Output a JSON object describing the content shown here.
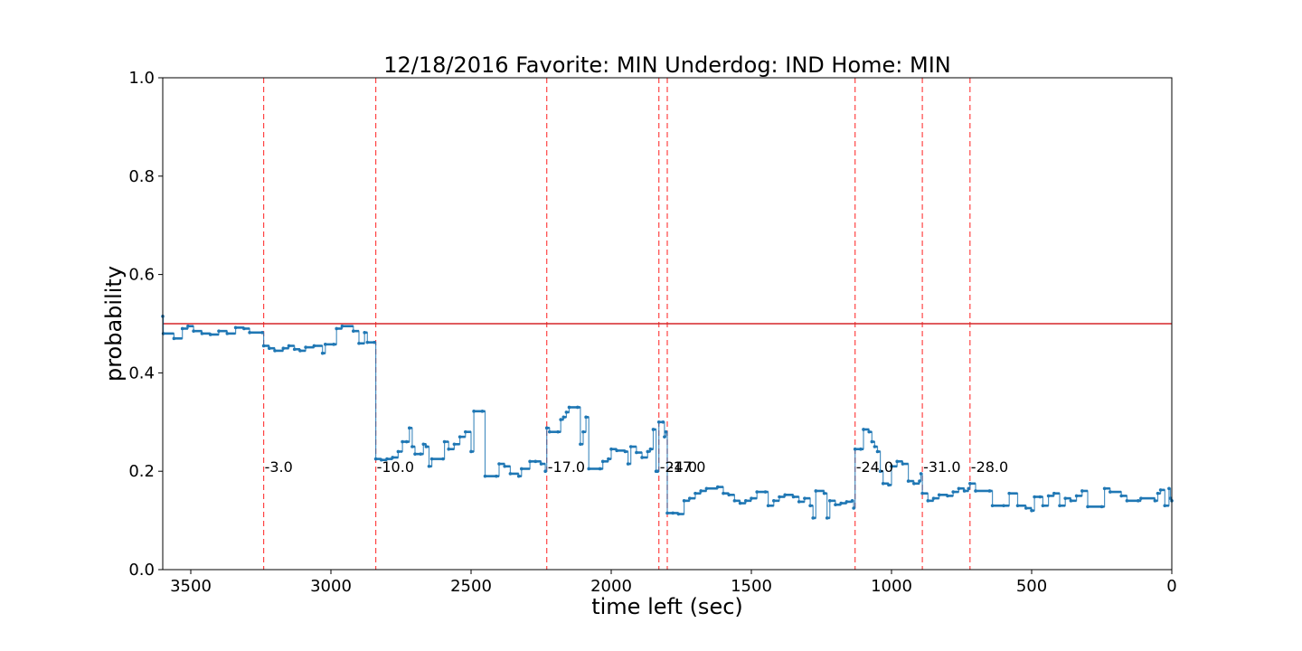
{
  "chart_data": {
    "type": "line",
    "title": "12/18/2016 Favorite: MIN Underdog: IND Home: MIN",
    "xlabel": "time left (sec)",
    "ylabel": "probability",
    "xlim": [
      3600,
      0
    ],
    "ylim": [
      0,
      1
    ],
    "x_ticks": [
      3500,
      3000,
      2500,
      2000,
      1500,
      1000,
      500,
      0
    ],
    "y_ticks": [
      0.0,
      0.2,
      0.4,
      0.6,
      0.8,
      1.0
    ],
    "grid": false,
    "colors": {
      "series": "#1f77b4",
      "reference": "#d62728",
      "events": "#ff4444"
    },
    "reference_line": {
      "y": 0.5
    },
    "events": [
      {
        "x": 3240,
        "label": "-3.0"
      },
      {
        "x": 2840,
        "label": "-10.0"
      },
      {
        "x": 2230,
        "label": "-17.0"
      },
      {
        "x": 1830,
        "label": "-24.0"
      },
      {
        "x": 1800,
        "label": "-17.0"
      },
      {
        "x": 1130,
        "label": "-24.0"
      },
      {
        "x": 890,
        "label": "-31.0"
      },
      {
        "x": 720,
        "label": "-28.0"
      }
    ],
    "series": [
      {
        "points": [
          [
            3600,
            0.515
          ],
          [
            3598,
            0.48
          ],
          [
            3560,
            0.47
          ],
          [
            3530,
            0.49
          ],
          [
            3510,
            0.495
          ],
          [
            3490,
            0.485
          ],
          [
            3460,
            0.48
          ],
          [
            3430,
            0.478
          ],
          [
            3400,
            0.485
          ],
          [
            3370,
            0.48
          ],
          [
            3340,
            0.492
          ],
          [
            3310,
            0.49
          ],
          [
            3290,
            0.482
          ],
          [
            3245,
            0.482
          ],
          [
            3240,
            0.455
          ],
          [
            3220,
            0.45
          ],
          [
            3200,
            0.445
          ],
          [
            3170,
            0.45
          ],
          [
            3150,
            0.455
          ],
          [
            3130,
            0.448
          ],
          [
            3110,
            0.445
          ],
          [
            3090,
            0.452
          ],
          [
            3060,
            0.455
          ],
          [
            3030,
            0.44
          ],
          [
            3020,
            0.458
          ],
          [
            2990,
            0.458
          ],
          [
            2980,
            0.49
          ],
          [
            2960,
            0.495
          ],
          [
            2920,
            0.485
          ],
          [
            2900,
            0.46
          ],
          [
            2880,
            0.482
          ],
          [
            2870,
            0.462
          ],
          [
            2845,
            0.462
          ],
          [
            2840,
            0.225
          ],
          [
            2820,
            0.223
          ],
          [
            2800,
            0.225
          ],
          [
            2780,
            0.228
          ],
          [
            2760,
            0.24
          ],
          [
            2745,
            0.26
          ],
          [
            2730,
            0.26
          ],
          [
            2720,
            0.288
          ],
          [
            2710,
            0.25
          ],
          [
            2700,
            0.235
          ],
          [
            2680,
            0.235
          ],
          [
            2670,
            0.255
          ],
          [
            2660,
            0.25
          ],
          [
            2650,
            0.21
          ],
          [
            2640,
            0.225
          ],
          [
            2600,
            0.225
          ],
          [
            2595,
            0.26
          ],
          [
            2580,
            0.245
          ],
          [
            2560,
            0.255
          ],
          [
            2540,
            0.27
          ],
          [
            2520,
            0.28
          ],
          [
            2500,
            0.24
          ],
          [
            2490,
            0.322
          ],
          [
            2460,
            0.322
          ],
          [
            2450,
            0.19
          ],
          [
            2410,
            0.19
          ],
          [
            2400,
            0.215
          ],
          [
            2380,
            0.21
          ],
          [
            2360,
            0.195
          ],
          [
            2330,
            0.19
          ],
          [
            2320,
            0.205
          ],
          [
            2290,
            0.22
          ],
          [
            2270,
            0.22
          ],
          [
            2250,
            0.215
          ],
          [
            2235,
            0.2
          ],
          [
            2230,
            0.288
          ],
          [
            2220,
            0.28
          ],
          [
            2190,
            0.28
          ],
          [
            2180,
            0.305
          ],
          [
            2170,
            0.31
          ],
          [
            2160,
            0.32
          ],
          [
            2150,
            0.33
          ],
          [
            2120,
            0.33
          ],
          [
            2110,
            0.255
          ],
          [
            2100,
            0.28
          ],
          [
            2090,
            0.31
          ],
          [
            2080,
            0.205
          ],
          [
            2040,
            0.205
          ],
          [
            2030,
            0.22
          ],
          [
            2010,
            0.225
          ],
          [
            2000,
            0.245
          ],
          [
            1980,
            0.242
          ],
          [
            1950,
            0.24
          ],
          [
            1940,
            0.215
          ],
          [
            1930,
            0.25
          ],
          [
            1910,
            0.238
          ],
          [
            1890,
            0.228
          ],
          [
            1870,
            0.24
          ],
          [
            1860,
            0.245
          ],
          [
            1850,
            0.285
          ],
          [
            1840,
            0.2
          ],
          [
            1835,
            0.2
          ],
          [
            1830,
            0.3
          ],
          [
            1815,
            0.3
          ],
          [
            1810,
            0.27
          ],
          [
            1805,
            0.28
          ],
          [
            1800,
            0.115
          ],
          [
            1780,
            0.115
          ],
          [
            1760,
            0.113
          ],
          [
            1740,
            0.14
          ],
          [
            1720,
            0.145
          ],
          [
            1700,
            0.155
          ],
          [
            1680,
            0.16
          ],
          [
            1660,
            0.165
          ],
          [
            1620,
            0.168
          ],
          [
            1600,
            0.155
          ],
          [
            1580,
            0.152
          ],
          [
            1560,
            0.14
          ],
          [
            1540,
            0.135
          ],
          [
            1520,
            0.14
          ],
          [
            1500,
            0.145
          ],
          [
            1480,
            0.158
          ],
          [
            1450,
            0.158
          ],
          [
            1440,
            0.13
          ],
          [
            1420,
            0.14
          ],
          [
            1400,
            0.148
          ],
          [
            1380,
            0.152
          ],
          [
            1350,
            0.148
          ],
          [
            1330,
            0.138
          ],
          [
            1310,
            0.145
          ],
          [
            1290,
            0.13
          ],
          [
            1280,
            0.105
          ],
          [
            1270,
            0.16
          ],
          [
            1240,
            0.155
          ],
          [
            1230,
            0.105
          ],
          [
            1220,
            0.14
          ],
          [
            1200,
            0.132
          ],
          [
            1180,
            0.135
          ],
          [
            1160,
            0.138
          ],
          [
            1140,
            0.14
          ],
          [
            1135,
            0.125
          ],
          [
            1130,
            0.245
          ],
          [
            1110,
            0.245
          ],
          [
            1100,
            0.285
          ],
          [
            1080,
            0.28
          ],
          [
            1070,
            0.26
          ],
          [
            1060,
            0.25
          ],
          [
            1050,
            0.24
          ],
          [
            1040,
            0.2
          ],
          [
            1030,
            0.175
          ],
          [
            1010,
            0.172
          ],
          [
            1000,
            0.21
          ],
          [
            980,
            0.22
          ],
          [
            960,
            0.215
          ],
          [
            940,
            0.18
          ],
          [
            920,
            0.175
          ],
          [
            900,
            0.18
          ],
          [
            895,
            0.195
          ],
          [
            890,
            0.155
          ],
          [
            870,
            0.14
          ],
          [
            850,
            0.145
          ],
          [
            830,
            0.152
          ],
          [
            800,
            0.15
          ],
          [
            780,
            0.158
          ],
          [
            760,
            0.165
          ],
          [
            740,
            0.16
          ],
          [
            725,
            0.165
          ],
          [
            720,
            0.175
          ],
          [
            700,
            0.16
          ],
          [
            650,
            0.16
          ],
          [
            640,
            0.13
          ],
          [
            600,
            0.13
          ],
          [
            580,
            0.155
          ],
          [
            550,
            0.13
          ],
          [
            520,
            0.125
          ],
          [
            500,
            0.12
          ],
          [
            490,
            0.148
          ],
          [
            470,
            0.148
          ],
          [
            460,
            0.13
          ],
          [
            440,
            0.15
          ],
          [
            420,
            0.155
          ],
          [
            400,
            0.13
          ],
          [
            380,
            0.145
          ],
          [
            360,
            0.14
          ],
          [
            340,
            0.15
          ],
          [
            320,
            0.16
          ],
          [
            300,
            0.128
          ],
          [
            250,
            0.128
          ],
          [
            240,
            0.165
          ],
          [
            220,
            0.158
          ],
          [
            180,
            0.15
          ],
          [
            160,
            0.14
          ],
          [
            120,
            0.14
          ],
          [
            110,
            0.145
          ],
          [
            60,
            0.14
          ],
          [
            50,
            0.155
          ],
          [
            40,
            0.162
          ],
          [
            25,
            0.13
          ],
          [
            10,
            0.165
          ],
          [
            5,
            0.145
          ],
          [
            0,
            0.14
          ]
        ]
      }
    ]
  }
}
